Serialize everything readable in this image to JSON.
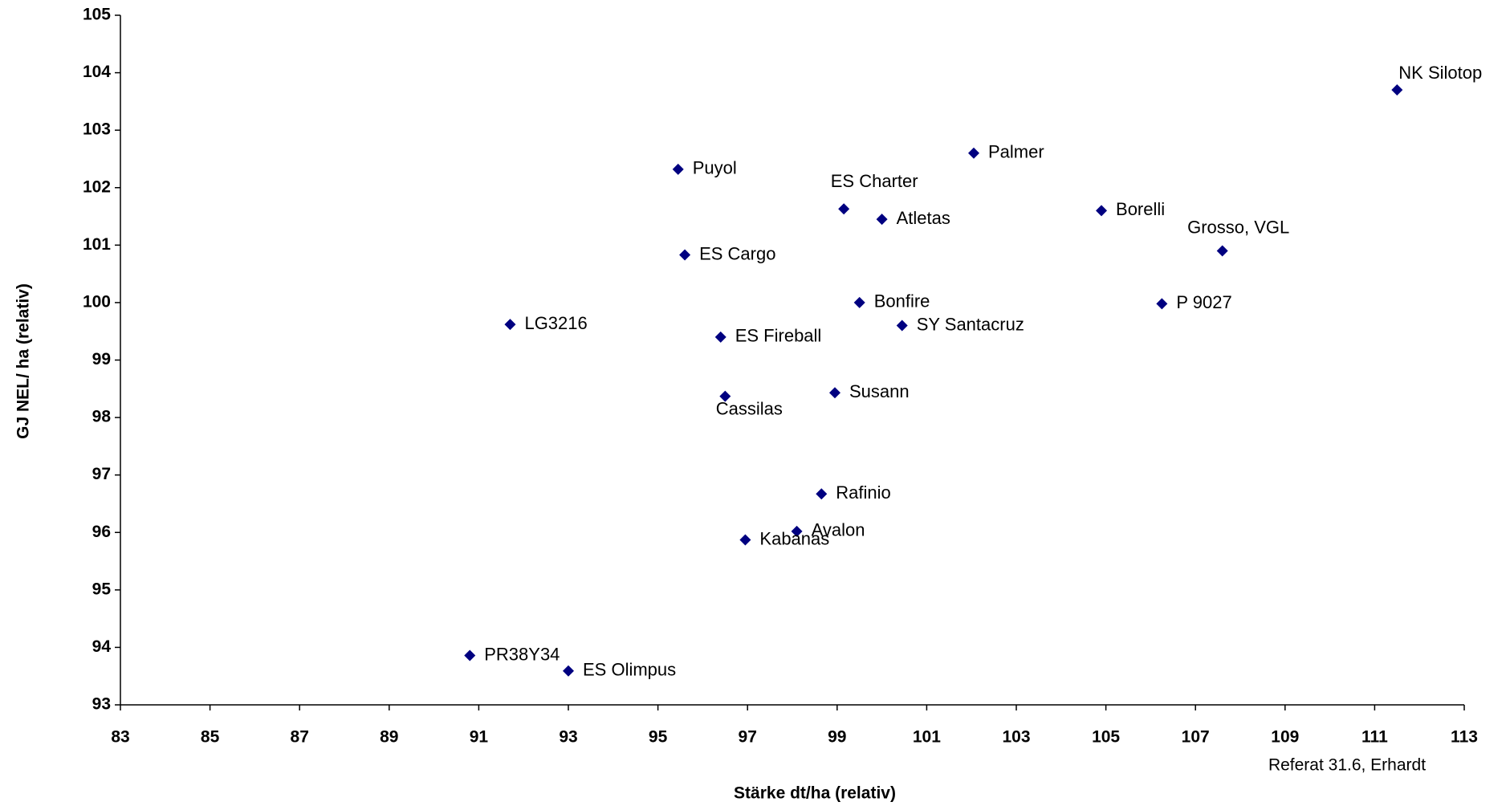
{
  "chart_data": {
    "type": "scatter",
    "xlabel": "Stärke  dt/ha (relativ)",
    "ylabel": "GJ NEL/ ha (relativ)",
    "annotation": "Referat 31.6, Erhardt",
    "xlim": [
      83,
      113
    ],
    "xticks": [
      83,
      85,
      87,
      89,
      91,
      93,
      95,
      97,
      99,
      101,
      103,
      105,
      107,
      109,
      111,
      113
    ],
    "ylim": [
      93,
      105
    ],
    "yticks": [
      93,
      94,
      95,
      96,
      97,
      98,
      99,
      100,
      101,
      102,
      103,
      104,
      105
    ],
    "color": "#000080",
    "labels": [
      "NK Silotop",
      "Palmer",
      "Puyol",
      "ES Charter",
      "Atletas",
      "Borelli",
      "Grosso, VGL",
      "ES Cargo",
      "Bonfire",
      "P 9027",
      "LG3216",
      "SY Santacruz",
      "ES Fireball",
      "Cassilas",
      "Susann",
      "Rafinio",
      "Avalon",
      "Kabanas",
      "PR38Y34",
      "ES Olimpus"
    ],
    "x": [
      111.5,
      102.05,
      95.45,
      99.15,
      100.0,
      104.9,
      107.6,
      95.6,
      99.5,
      106.25,
      91.7,
      100.45,
      96.4,
      96.5,
      98.95,
      98.65,
      98.1,
      96.95,
      90.8,
      93.0
    ],
    "values": [
      103.7,
      102.6,
      102.32,
      101.63,
      101.45,
      101.6,
      100.9,
      100.83,
      100.0,
      99.98,
      99.62,
      99.6,
      99.4,
      98.37,
      98.43,
      96.67,
      96.02,
      95.87,
      93.86,
      93.59
    ]
  }
}
